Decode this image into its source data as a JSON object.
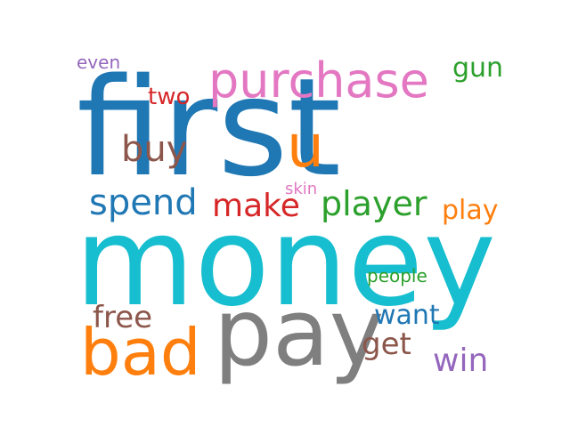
{
  "words": [
    {
      "key": "first",
      "text": "first",
      "color": "#1f77b4"
    },
    {
      "key": "money",
      "text": "money",
      "color": "#17becf"
    },
    {
      "key": "purchase",
      "text": "purchase",
      "color": "#e377c2"
    },
    {
      "key": "pay",
      "text": "pay",
      "color": "#7f7f7f"
    },
    {
      "key": "bad",
      "text": "bad",
      "color": "#ff7f0e"
    },
    {
      "key": "u",
      "text": "u",
      "color": "#ff7f0e"
    },
    {
      "key": "spend",
      "text": "spend",
      "color": "#1f77b4"
    },
    {
      "key": "make",
      "text": "make",
      "color": "#d62728"
    },
    {
      "key": "player",
      "text": "player",
      "color": "#2ca02c"
    },
    {
      "key": "play",
      "text": "play",
      "color": "#ff7f0e"
    },
    {
      "key": "buy",
      "text": "buy",
      "color": "#8c564b"
    },
    {
      "key": "two",
      "text": "two",
      "color": "#d62728"
    },
    {
      "key": "gun",
      "text": "gun",
      "color": "#2ca02c"
    },
    {
      "key": "even",
      "text": "even",
      "color": "#9467bd"
    },
    {
      "key": "skin",
      "text": "skin",
      "color": "#e377c2"
    },
    {
      "key": "people",
      "text": "people",
      "color": "#2ca02c"
    },
    {
      "key": "free",
      "text": "free",
      "color": "#8c564b"
    },
    {
      "key": "want",
      "text": "want",
      "color": "#1f77b4"
    },
    {
      "key": "get",
      "text": "get",
      "color": "#8c564b"
    },
    {
      "key": "win",
      "text": "win",
      "color": "#9467bd"
    }
  ]
}
